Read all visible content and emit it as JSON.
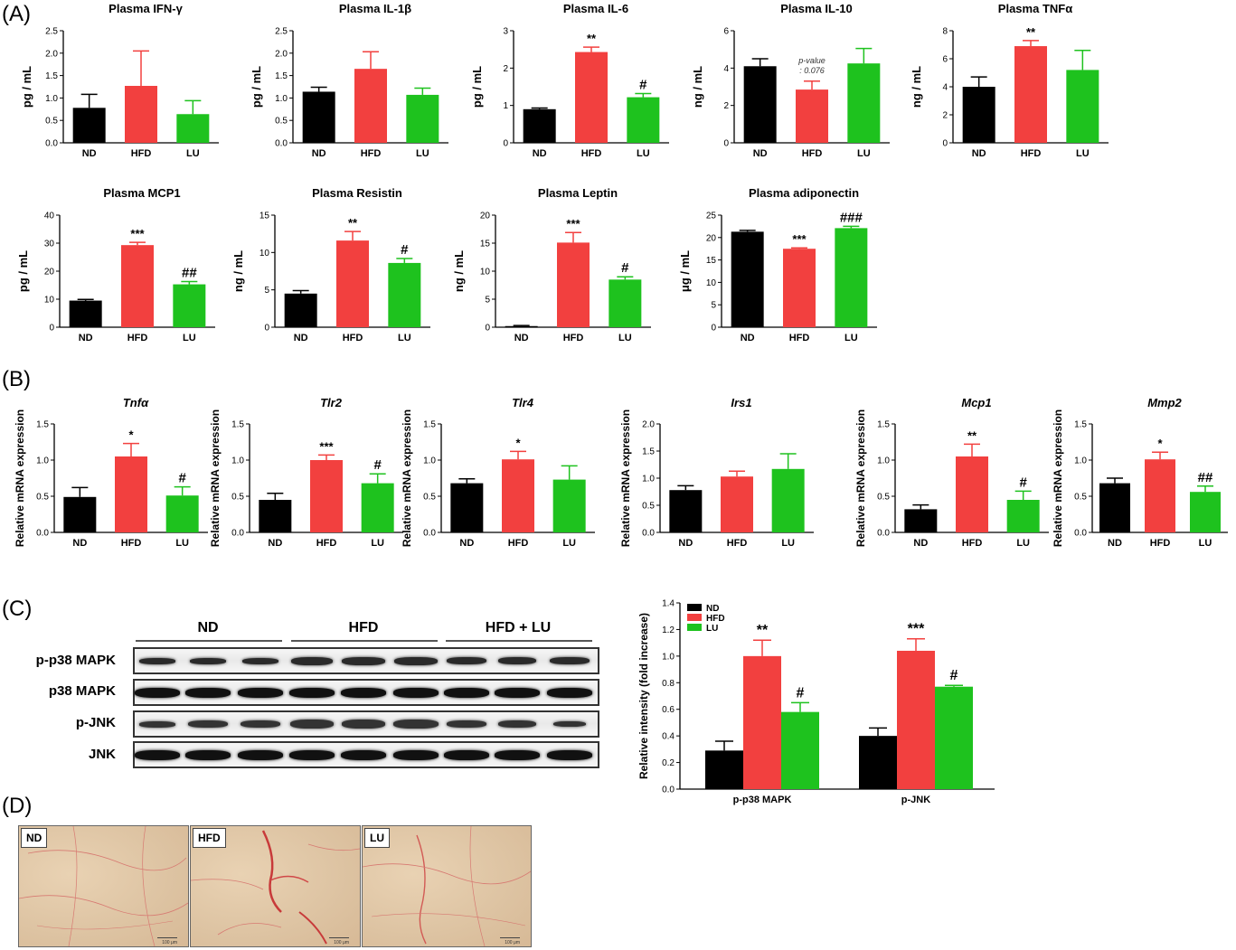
{
  "panel_labels": [
    "(A)",
    "(B)",
    "(C)",
    "(D)"
  ],
  "colors": {
    "ND": "#000000",
    "HFD": "#f2403f",
    "LU": "#1ec21e"
  },
  "chart_data": [
    {
      "id": "ifng",
      "type": "bar",
      "title": "Plasma IFN-γ",
      "title_style": "bold",
      "ylabel": "pg / mL",
      "categories": [
        "ND",
        "HFD",
        "LU"
      ],
      "values": [
        0.78,
        1.27,
        0.64
      ],
      "errors": [
        0.3,
        0.78,
        0.3
      ],
      "ylim": [
        0,
        2.5
      ],
      "ticks": [
        0.0,
        0.5,
        1.0,
        1.5,
        2.0,
        2.5
      ],
      "tick_decimals": 1,
      "annotations": [
        "",
        "",
        ""
      ]
    },
    {
      "id": "il1b",
      "type": "bar",
      "title": "Plasma IL-1β",
      "title_style": "bold",
      "ylabel": "pg / mL",
      "categories": [
        "ND",
        "HFD",
        "LU"
      ],
      "values": [
        1.14,
        1.65,
        1.07
      ],
      "errors": [
        0.1,
        0.38,
        0.15
      ],
      "ylim": [
        0,
        2.5
      ],
      "ticks": [
        0.0,
        0.5,
        1.0,
        1.5,
        2.0,
        2.5
      ],
      "tick_decimals": 1,
      "annotations": [
        "",
        "",
        ""
      ]
    },
    {
      "id": "il6",
      "type": "bar",
      "title": "Plasma IL-6",
      "title_style": "bold",
      "ylabel": "pg / mL",
      "categories": [
        "ND",
        "HFD",
        "LU"
      ],
      "values": [
        0.9,
        2.43,
        1.22
      ],
      "errors": [
        0.03,
        0.13,
        0.1
      ],
      "ylim": [
        0,
        3
      ],
      "ticks": [
        0,
        1,
        2,
        3
      ],
      "tick_decimals": 0,
      "annotations": [
        "",
        "**",
        "#"
      ]
    },
    {
      "id": "il10",
      "type": "bar",
      "title": "Plasma IL-10",
      "title_style": "bold",
      "ylabel": "ng / mL",
      "categories": [
        "ND",
        "HFD",
        "LU"
      ],
      "values": [
        4.1,
        2.85,
        4.25
      ],
      "errors": [
        0.4,
        0.45,
        0.8
      ],
      "ylim": [
        0,
        6
      ],
      "ticks": [
        0,
        2,
        4,
        6
      ],
      "tick_decimals": 0,
      "annotations": [
        "",
        "",
        ""
      ],
      "note": [
        "p-value",
        ": 0.076"
      ]
    },
    {
      "id": "tnfa",
      "type": "bar",
      "title": "Plasma TNFα",
      "title_style": "bold",
      "ylabel": "ng / mL",
      "categories": [
        "ND",
        "HFD",
        "LU"
      ],
      "values": [
        4.0,
        6.9,
        5.2
      ],
      "errors": [
        0.7,
        0.4,
        1.4
      ],
      "ylim": [
        0,
        8
      ],
      "ticks": [
        0,
        2,
        4,
        6,
        8
      ],
      "tick_decimals": 0,
      "annotations": [
        "",
        "**",
        ""
      ]
    },
    {
      "id": "mcp1",
      "type": "bar",
      "title": "Plasma MCP1",
      "title_style": "bold",
      "ylabel": "pg / mL",
      "categories": [
        "ND",
        "HFD",
        "LU"
      ],
      "values": [
        9.5,
        29.3,
        15.3
      ],
      "errors": [
        0.4,
        1.0,
        1.0
      ],
      "ylim": [
        0,
        40
      ],
      "ticks": [
        0,
        10,
        20,
        30,
        40
      ],
      "tick_decimals": 0,
      "annotations": [
        "",
        "***",
        "##"
      ]
    },
    {
      "id": "resistin",
      "type": "bar",
      "title": "Plasma Resistin",
      "title_style": "bold",
      "ylabel": "ng / mL",
      "categories": [
        "ND",
        "HFD",
        "LU"
      ],
      "values": [
        4.5,
        11.6,
        8.6
      ],
      "errors": [
        0.4,
        1.2,
        0.6
      ],
      "ylim": [
        0,
        15
      ],
      "ticks": [
        0,
        5,
        10,
        15
      ],
      "tick_decimals": 0,
      "annotations": [
        "",
        "**",
        "#"
      ]
    },
    {
      "id": "leptin",
      "type": "bar",
      "title": "Plasma Leptin",
      "title_style": "bold",
      "ylabel": "ng / mL",
      "categories": [
        "ND",
        "HFD",
        "LU"
      ],
      "values": [
        0.2,
        15.1,
        8.5
      ],
      "errors": [
        0.1,
        1.8,
        0.5
      ],
      "ylim": [
        0,
        20
      ],
      "ticks": [
        0,
        5,
        10,
        15,
        20
      ],
      "tick_decimals": 0,
      "annotations": [
        "",
        "***",
        "#"
      ]
    },
    {
      "id": "adiponectin",
      "type": "bar",
      "title": "Plasma adiponectin",
      "title_style": "bold",
      "ylabel": "μg / mL",
      "categories": [
        "ND",
        "HFD",
        "LU"
      ],
      "values": [
        21.3,
        17.5,
        22.1
      ],
      "errors": [
        0.3,
        0.2,
        0.4
      ],
      "ylim": [
        0,
        25
      ],
      "ticks": [
        0,
        5,
        10,
        15,
        20,
        25
      ],
      "tick_decimals": 0,
      "annotations": [
        "",
        "***",
        "###"
      ]
    },
    {
      "id": "b_tnfa",
      "type": "bar",
      "title": "Tnfα",
      "title_style": "italic",
      "ylabel": "Relative mRNA expression",
      "categories": [
        "ND",
        "HFD",
        "LU"
      ],
      "values": [
        0.49,
        1.05,
        0.51
      ],
      "errors": [
        0.13,
        0.18,
        0.12
      ],
      "ylim": [
        0,
        1.5
      ],
      "ticks": [
        0.0,
        0.5,
        1.0,
        1.5
      ],
      "tick_decimals": 1,
      "annotations": [
        "",
        "*",
        "#"
      ]
    },
    {
      "id": "b_tlr2",
      "type": "bar",
      "title": "Tlr2",
      "title_style": "italic",
      "ylabel": "Relative mRNA expression",
      "categories": [
        "ND",
        "HFD",
        "LU"
      ],
      "values": [
        0.45,
        1.0,
        0.68
      ],
      "errors": [
        0.09,
        0.07,
        0.13
      ],
      "ylim": [
        0,
        1.5
      ],
      "ticks": [
        0.0,
        0.5,
        1.0,
        1.5
      ],
      "tick_decimals": 1,
      "annotations": [
        "",
        "***",
        "#"
      ]
    },
    {
      "id": "b_tlr4",
      "type": "bar",
      "title": "Tlr4",
      "title_style": "italic",
      "ylabel": "Relative mRNA expression",
      "categories": [
        "ND",
        "HFD",
        "LU"
      ],
      "values": [
        0.68,
        1.01,
        0.73
      ],
      "errors": [
        0.06,
        0.11,
        0.19
      ],
      "ylim": [
        0,
        1.5
      ],
      "ticks": [
        0.0,
        0.5,
        1.0,
        1.5
      ],
      "tick_decimals": 1,
      "annotations": [
        "",
        "*",
        ""
      ]
    },
    {
      "id": "b_irs1",
      "type": "bar",
      "title": "Irs1",
      "title_style": "italic",
      "ylabel": "Relative mRNA expression",
      "categories": [
        "ND",
        "HFD",
        "LU"
      ],
      "values": [
        0.78,
        1.03,
        1.17
      ],
      "errors": [
        0.08,
        0.1,
        0.28
      ],
      "ylim": [
        0,
        2.0
      ],
      "ticks": [
        0.0,
        0.5,
        1.0,
        1.5,
        2.0
      ],
      "tick_decimals": 1,
      "annotations": [
        "",
        "",
        ""
      ]
    },
    {
      "id": "b_mcp1",
      "type": "bar",
      "title": "Mcp1",
      "title_style": "italic",
      "ylabel": "Relative mRNA expression",
      "categories": [
        "ND",
        "HFD",
        "LU"
      ],
      "values": [
        0.32,
        1.05,
        0.45
      ],
      "errors": [
        0.06,
        0.17,
        0.12
      ],
      "ylim": [
        0,
        1.5
      ],
      "ticks": [
        0.0,
        0.5,
        1.0,
        1.5
      ],
      "tick_decimals": 1,
      "annotations": [
        "",
        "**",
        "#"
      ]
    },
    {
      "id": "b_mmp2",
      "type": "bar",
      "title": "Mmp2",
      "title_style": "italic",
      "ylabel": "Relative mRNA expression",
      "categories": [
        "ND",
        "HFD",
        "LU"
      ],
      "values": [
        0.68,
        1.01,
        0.56
      ],
      "errors": [
        0.07,
        0.1,
        0.08
      ],
      "ylim": [
        0,
        1.5
      ],
      "ticks": [
        0.0,
        0.5,
        1.0,
        1.5
      ],
      "tick_decimals": 1,
      "annotations": [
        "",
        "*",
        "##"
      ]
    },
    {
      "id": "c_intensity",
      "type": "bar",
      "title": "",
      "ylabel": "Relative intensity (fold increase)",
      "categories": [
        "p-p38 MAPK",
        "p-JNK"
      ],
      "series": [
        {
          "name": "ND",
          "values": [
            0.29,
            0.4
          ],
          "errors": [
            0.07,
            0.06
          ],
          "annotations": [
            "",
            ""
          ]
        },
        {
          "name": "HFD",
          "values": [
            1.0,
            1.04
          ],
          "errors": [
            0.12,
            0.09
          ],
          "annotations": [
            "**",
            "***"
          ]
        },
        {
          "name": "LU",
          "values": [
            0.58,
            0.77
          ],
          "errors": [
            0.07,
            0.01
          ],
          "annotations": [
            "#",
            "#"
          ]
        }
      ],
      "ylim": [
        0,
        1.4
      ],
      "ticks": [
        0.0,
        0.2,
        0.4,
        0.6,
        0.8,
        1.0,
        1.2,
        1.4
      ],
      "tick_decimals": 1,
      "legend": "top-left"
    }
  ],
  "western_blot": {
    "groups": [
      "ND",
      "HFD",
      "HFD + LU"
    ],
    "rows": [
      "p-p38 MAPK",
      "p38 MAPK",
      "p-JNK",
      "JNK"
    ]
  },
  "histology": {
    "panels": [
      "ND",
      "HFD",
      "LU"
    ],
    "scale_text": "100 μm"
  }
}
